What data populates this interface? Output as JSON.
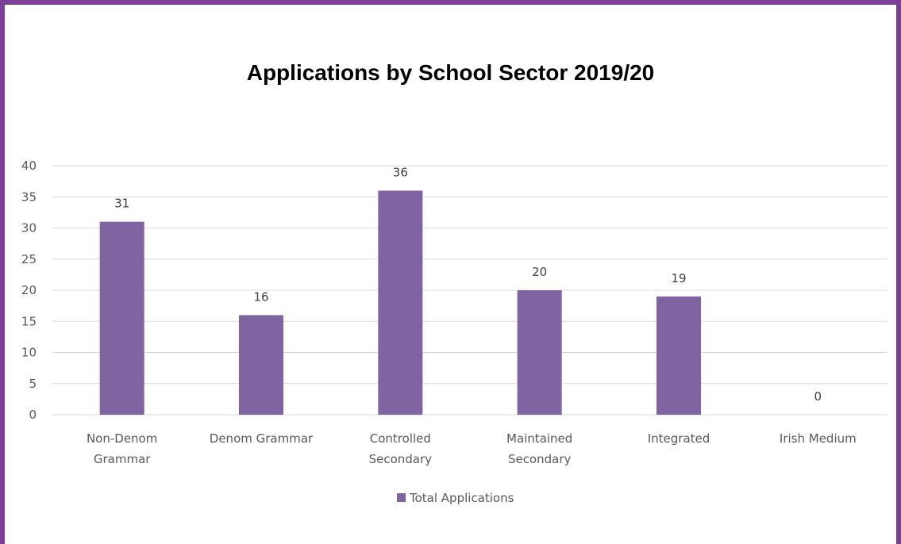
{
  "chart_data": {
    "type": "bar",
    "title": "Applications by School Sector 2019/20",
    "categories": [
      [
        "Non-Denom",
        "Grammar"
      ],
      [
        "Denom Grammar"
      ],
      [
        "Controlled",
        "Secondary"
      ],
      [
        "Maintained",
        "Secondary"
      ],
      [
        "Integrated"
      ],
      [
        "Irish Medium"
      ]
    ],
    "series": [
      {
        "name": "Total Applications",
        "values": [
          31,
          16,
          36,
          20,
          19,
          0
        ]
      }
    ],
    "yticks": [
      "0",
      "5",
      "10",
      "15",
      "20",
      "25",
      "30",
      "35",
      "40"
    ],
    "ylim": [
      0,
      40
    ],
    "grid": true,
    "legend": "bottom",
    "bar_color": "#8064a2",
    "frame_color": "#7b3f98"
  }
}
